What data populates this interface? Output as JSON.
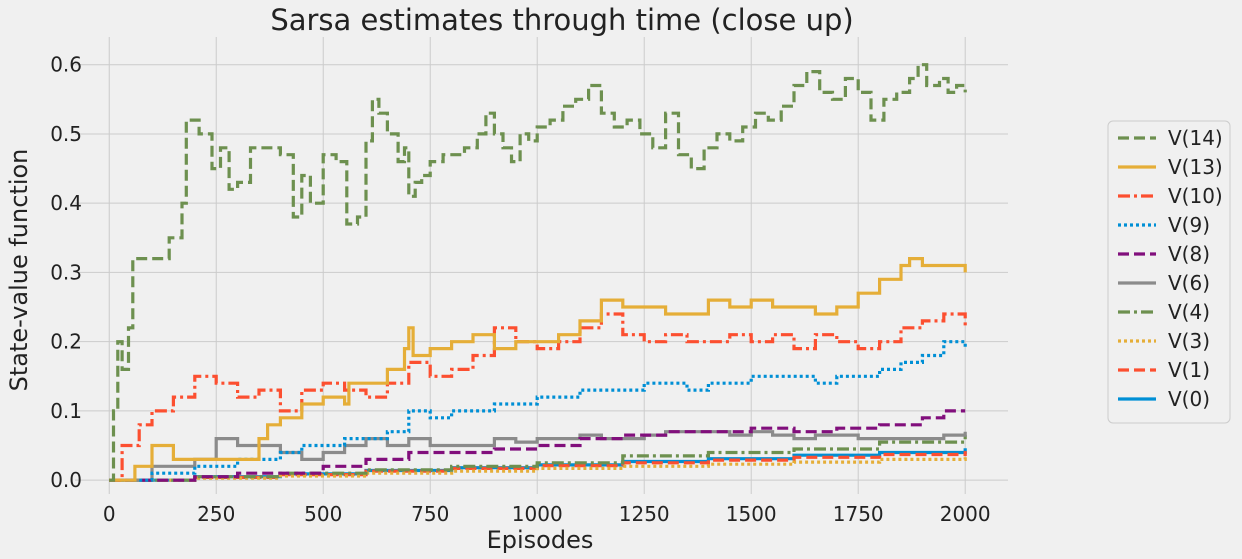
{
  "chart_data": {
    "type": "line",
    "title": "Sarsa estimates through time (close up)",
    "xlabel": "Episodes",
    "ylabel": "State-value function",
    "xlim": [
      -80,
      2100
    ],
    "ylim": [
      -0.02,
      0.64
    ],
    "xticks": [
      0,
      250,
      500,
      750,
      1000,
      1250,
      1500,
      1750,
      2000
    ],
    "xtick_labels": [
      "0",
      "250",
      "500",
      "750",
      "1000",
      "1250",
      "1500",
      "1750",
      "2000"
    ],
    "yticks": [
      0.0,
      0.1,
      0.2,
      0.3,
      0.4,
      0.5,
      0.6
    ],
    "ytick_labels": [
      "0.0",
      "0.1",
      "0.2",
      "0.3",
      "0.4",
      "0.5",
      "0.6"
    ],
    "grid": true,
    "legend_position": "right",
    "series": [
      {
        "name": "V(14)",
        "color": "#6d904f",
        "style": "dashed",
        "x": [
          0,
          10,
          20,
          30,
          45,
          55,
          60,
          70,
          100,
          140,
          170,
          180,
          190,
          210,
          240,
          260,
          280,
          300,
          330,
          360,
          400,
          430,
          450,
          470,
          500,
          530,
          555,
          580,
          600,
          615,
          630,
          650,
          675,
          690,
          700,
          715,
          730,
          750,
          780,
          800,
          830,
          860,
          880,
          900,
          920,
          940,
          960,
          980,
          1000,
          1030,
          1060,
          1090,
          1120,
          1150,
          1180,
          1210,
          1240,
          1270,
          1300,
          1330,
          1360,
          1390,
          1420,
          1450,
          1480,
          1510,
          1540,
          1570,
          1600,
          1630,
          1660,
          1690,
          1720,
          1750,
          1780,
          1810,
          1840,
          1870,
          1890,
          1910,
          1940,
          1960,
          1980,
          2000
        ],
        "y": [
          0.0,
          0.1,
          0.2,
          0.16,
          0.22,
          0.32,
          0.32,
          0.32,
          0.32,
          0.35,
          0.4,
          0.52,
          0.52,
          0.5,
          0.45,
          0.48,
          0.42,
          0.43,
          0.48,
          0.48,
          0.47,
          0.38,
          0.44,
          0.4,
          0.47,
          0.46,
          0.37,
          0.38,
          0.49,
          0.55,
          0.53,
          0.5,
          0.46,
          0.48,
          0.41,
          0.43,
          0.44,
          0.46,
          0.47,
          0.47,
          0.48,
          0.5,
          0.53,
          0.5,
          0.48,
          0.46,
          0.5,
          0.49,
          0.51,
          0.52,
          0.54,
          0.55,
          0.57,
          0.53,
          0.51,
          0.52,
          0.5,
          0.48,
          0.53,
          0.47,
          0.45,
          0.48,
          0.5,
          0.49,
          0.51,
          0.53,
          0.52,
          0.54,
          0.57,
          0.59,
          0.56,
          0.55,
          0.58,
          0.56,
          0.52,
          0.55,
          0.56,
          0.58,
          0.6,
          0.57,
          0.58,
          0.56,
          0.57,
          0.56
        ]
      },
      {
        "name": "V(13)",
        "color": "#e5ae38",
        "style": "solid",
        "x": [
          0,
          60,
          100,
          150,
          200,
          250,
          300,
          350,
          370,
          400,
          450,
          500,
          550,
          560,
          600,
          650,
          690,
          700,
          710,
          750,
          800,
          850,
          900,
          950,
          1000,
          1050,
          1100,
          1150,
          1200,
          1250,
          1300,
          1350,
          1400,
          1450,
          1500,
          1550,
          1600,
          1650,
          1700,
          1750,
          1800,
          1850,
          1870,
          1900,
          1950,
          2000
        ],
        "y": [
          0.0,
          0.02,
          0.05,
          0.03,
          0.03,
          0.03,
          0.03,
          0.06,
          0.08,
          0.09,
          0.11,
          0.12,
          0.11,
          0.14,
          0.14,
          0.16,
          0.19,
          0.22,
          0.18,
          0.19,
          0.2,
          0.21,
          0.19,
          0.2,
          0.2,
          0.21,
          0.23,
          0.26,
          0.25,
          0.25,
          0.24,
          0.24,
          0.26,
          0.25,
          0.26,
          0.25,
          0.25,
          0.24,
          0.25,
          0.27,
          0.29,
          0.31,
          0.32,
          0.31,
          0.31,
          0.3
        ]
      },
      {
        "name": "V(10)",
        "color": "#fc4f30",
        "style": "dashdot",
        "x": [
          0,
          30,
          70,
          100,
          150,
          200,
          250,
          300,
          350,
          400,
          450,
          500,
          550,
          600,
          650,
          700,
          750,
          800,
          850,
          900,
          950,
          1000,
          1050,
          1100,
          1150,
          1200,
          1250,
          1300,
          1350,
          1400,
          1450,
          1500,
          1550,
          1600,
          1650,
          1700,
          1750,
          1800,
          1850,
          1900,
          1950,
          2000
        ],
        "y": [
          0.0,
          0.05,
          0.08,
          0.1,
          0.12,
          0.15,
          0.14,
          0.12,
          0.13,
          0.1,
          0.13,
          0.14,
          0.13,
          0.12,
          0.14,
          0.17,
          0.15,
          0.16,
          0.18,
          0.22,
          0.2,
          0.19,
          0.2,
          0.22,
          0.24,
          0.21,
          0.2,
          0.21,
          0.2,
          0.2,
          0.21,
          0.2,
          0.21,
          0.19,
          0.21,
          0.2,
          0.19,
          0.2,
          0.22,
          0.23,
          0.24,
          0.22
        ]
      },
      {
        "name": "V(9)",
        "color": "#008fd5",
        "style": "dotted",
        "x": [
          0,
          100,
          200,
          300,
          350,
          400,
          450,
          500,
          550,
          600,
          650,
          700,
          750,
          800,
          850,
          900,
          950,
          1000,
          1050,
          1100,
          1150,
          1200,
          1250,
          1300,
          1350,
          1400,
          1450,
          1500,
          1550,
          1600,
          1650,
          1700,
          1750,
          1800,
          1850,
          1900,
          1950,
          2000
        ],
        "y": [
          0.0,
          0.01,
          0.02,
          0.03,
          0.03,
          0.04,
          0.05,
          0.05,
          0.06,
          0.06,
          0.07,
          0.1,
          0.09,
          0.1,
          0.1,
          0.11,
          0.11,
          0.12,
          0.12,
          0.13,
          0.13,
          0.13,
          0.14,
          0.14,
          0.13,
          0.14,
          0.14,
          0.15,
          0.15,
          0.15,
          0.14,
          0.15,
          0.15,
          0.16,
          0.17,
          0.18,
          0.2,
          0.19
        ]
      },
      {
        "name": "V(8)",
        "color": "#810f7c",
        "style": "dashed",
        "x": [
          0,
          100,
          200,
          300,
          400,
          500,
          600,
          700,
          800,
          900,
          1000,
          1100,
          1200,
          1300,
          1400,
          1500,
          1600,
          1700,
          1800,
          1900,
          1950,
          2000
        ],
        "y": [
          0.0,
          0.0,
          0.005,
          0.01,
          0.01,
          0.02,
          0.03,
          0.04,
          0.04,
          0.045,
          0.05,
          0.06,
          0.065,
          0.07,
          0.07,
          0.075,
          0.07,
          0.075,
          0.08,
          0.09,
          0.1,
          0.1
        ]
      },
      {
        "name": "V(6)",
        "color": "#8b8b8b",
        "style": "solid",
        "x": [
          0,
          100,
          200,
          250,
          300,
          400,
          450,
          500,
          550,
          600,
          650,
          700,
          750,
          800,
          850,
          900,
          950,
          1000,
          1050,
          1100,
          1150,
          1200,
          1250,
          1300,
          1350,
          1400,
          1450,
          1500,
          1550,
          1600,
          1650,
          1700,
          1750,
          1800,
          1850,
          1900,
          1950,
          2000
        ],
        "y": [
          0.0,
          0.02,
          0.03,
          0.06,
          0.05,
          0.04,
          0.03,
          0.04,
          0.05,
          0.06,
          0.05,
          0.06,
          0.05,
          0.05,
          0.05,
          0.06,
          0.055,
          0.06,
          0.06,
          0.065,
          0.06,
          0.06,
          0.065,
          0.07,
          0.07,
          0.07,
          0.065,
          0.07,
          0.065,
          0.06,
          0.065,
          0.065,
          0.06,
          0.06,
          0.06,
          0.06,
          0.065,
          0.07
        ]
      },
      {
        "name": "V(4)",
        "color": "#6d904f",
        "style": "dashdot",
        "x": [
          0,
          200,
          400,
          600,
          800,
          1000,
          1200,
          1400,
          1600,
          1800,
          2000
        ],
        "y": [
          0.0,
          0.005,
          0.01,
          0.015,
          0.02,
          0.025,
          0.035,
          0.04,
          0.045,
          0.055,
          0.065
        ]
      },
      {
        "name": "V(3)",
        "color": "#e5ae38",
        "style": "dotted",
        "x": [
          0,
          200,
          400,
          600,
          800,
          1000,
          1200,
          1400,
          1600,
          1800,
          2000
        ],
        "y": [
          0.0,
          0.003,
          0.006,
          0.01,
          0.013,
          0.017,
          0.02,
          0.023,
          0.026,
          0.03,
          0.033
        ]
      },
      {
        "name": "V(1)",
        "color": "#fc4f30",
        "style": "dashed",
        "x": [
          0,
          200,
          400,
          600,
          800,
          1000,
          1200,
          1400,
          1600,
          1800,
          2000
        ],
        "y": [
          0.0,
          0.004,
          0.008,
          0.013,
          0.017,
          0.021,
          0.025,
          0.029,
          0.033,
          0.037,
          0.042
        ]
      },
      {
        "name": "V(0)",
        "color": "#008fd5",
        "style": "solid",
        "x": [
          0,
          200,
          400,
          600,
          800,
          1000,
          1200,
          1400,
          1600,
          1800,
          2000
        ],
        "y": [
          0.0,
          0.005,
          0.009,
          0.014,
          0.018,
          0.022,
          0.027,
          0.031,
          0.036,
          0.04,
          0.046
        ]
      }
    ]
  }
}
